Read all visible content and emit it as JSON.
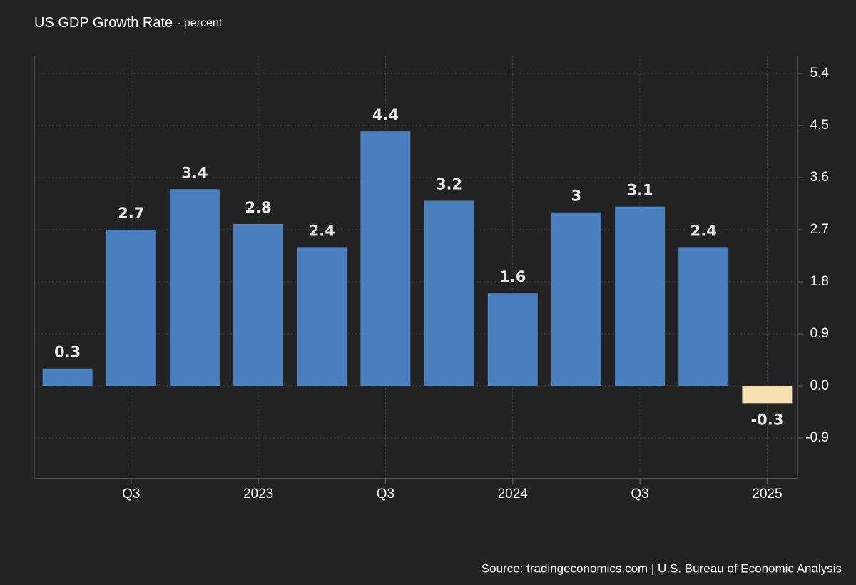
{
  "chart_data": {
    "type": "bar",
    "title": "US GDP Growth Rate",
    "subtitle": "- percent",
    "source": "Source: tradingeconomics.com | U.S. Bureau of Economic Analysis",
    "categories": [
      null,
      "Q3",
      null,
      "2023",
      null,
      "Q3",
      null,
      "2024",
      null,
      "Q3",
      null,
      "2025"
    ],
    "values": [
      0.3,
      2.7,
      3.4,
      2.8,
      2.4,
      4.4,
      3.2,
      1.6,
      3,
      3.1,
      2.4,
      -0.3
    ],
    "colors": [
      "#4a7fbe",
      "#4a7fbe",
      "#4a7fbe",
      "#4a7fbe",
      "#4a7fbe",
      "#4a7fbe",
      "#4a7fbe",
      "#4a7fbe",
      "#4a7fbe",
      "#4a7fbe",
      "#4a7fbe",
      "#f7dfb0"
    ],
    "ylim": [
      -1.6,
      5.7
    ],
    "yticks": [
      -0.9,
      {
        "value": 0,
        "label": "0.0"
      },
      0.9,
      1.8,
      2.7,
      3.6,
      4.5,
      5.4
    ],
    "grid": true,
    "y_axis_side": "right"
  }
}
